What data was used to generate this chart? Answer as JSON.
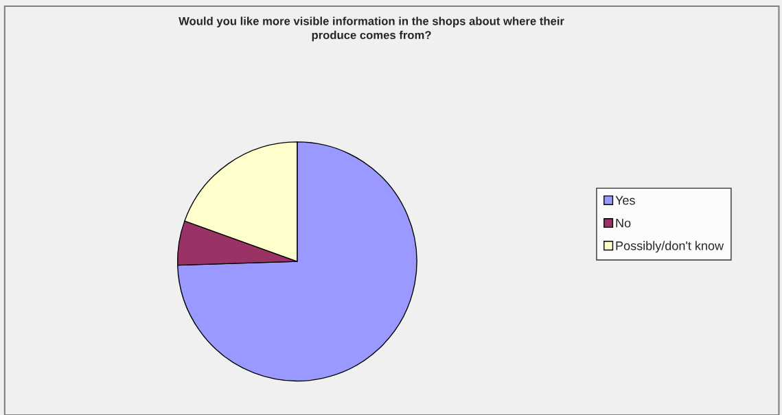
{
  "chart_data": {
    "type": "pie",
    "title": "Would you like more visible information in the shops about where their\nproduce comes from?",
    "categories": [
      "Yes",
      "No",
      "Possibly/don't know"
    ],
    "values": [
      74.5,
      6,
      19.5
    ],
    "colors": [
      "#9999ff",
      "#993366",
      "#ffffcc"
    ],
    "legend": "right"
  }
}
